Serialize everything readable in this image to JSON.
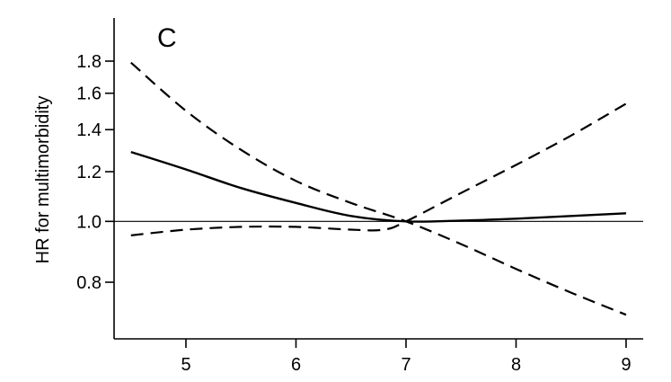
{
  "chart_data": {
    "type": "line",
    "panel_label": "C",
    "xlabel": "",
    "ylabel": "HR for multimorbidity",
    "y_scale": "log",
    "xlim": [
      4.35,
      9.15
    ],
    "ylim": [
      0.7,
      2.0
    ],
    "x_ticks": [
      5,
      6,
      7,
      8,
      9
    ],
    "y_ticks": [
      0.8,
      1.0,
      1.2,
      1.4,
      1.6,
      1.8
    ],
    "y_tick_labels": [
      "0.8",
      "1.0",
      "1.2",
      "1.4",
      "1.6",
      "1.8"
    ],
    "reference_line": 1.0,
    "series": [
      {
        "style": "solid",
        "x": [
          4.5,
          5.0,
          5.5,
          6.0,
          6.5,
          7.0,
          7.5,
          8.0,
          8.5,
          9.0
        ],
        "values": [
          1.29,
          1.21,
          1.13,
          1.07,
          1.02,
          1.0,
          1.003,
          1.01,
          1.02,
          1.03
        ]
      },
      {
        "style": "dashed",
        "x": [
          4.5,
          5.0,
          5.5,
          6.0,
          6.5,
          7.0,
          7.5,
          8.0,
          8.5,
          9.0
        ],
        "values": [
          1.79,
          1.5,
          1.3,
          1.16,
          1.07,
          1.0,
          0.92,
          0.84,
          0.77,
          0.71
        ]
      },
      {
        "style": "dashed",
        "x": [
          4.5,
          5.0,
          5.5,
          6.0,
          6.5,
          6.8,
          7.0,
          7.5,
          8.0,
          8.5,
          9.0
        ],
        "values": [
          0.95,
          0.97,
          0.98,
          0.98,
          0.97,
          0.97,
          1.0,
          1.11,
          1.23,
          1.37,
          1.54
        ]
      }
    ]
  }
}
